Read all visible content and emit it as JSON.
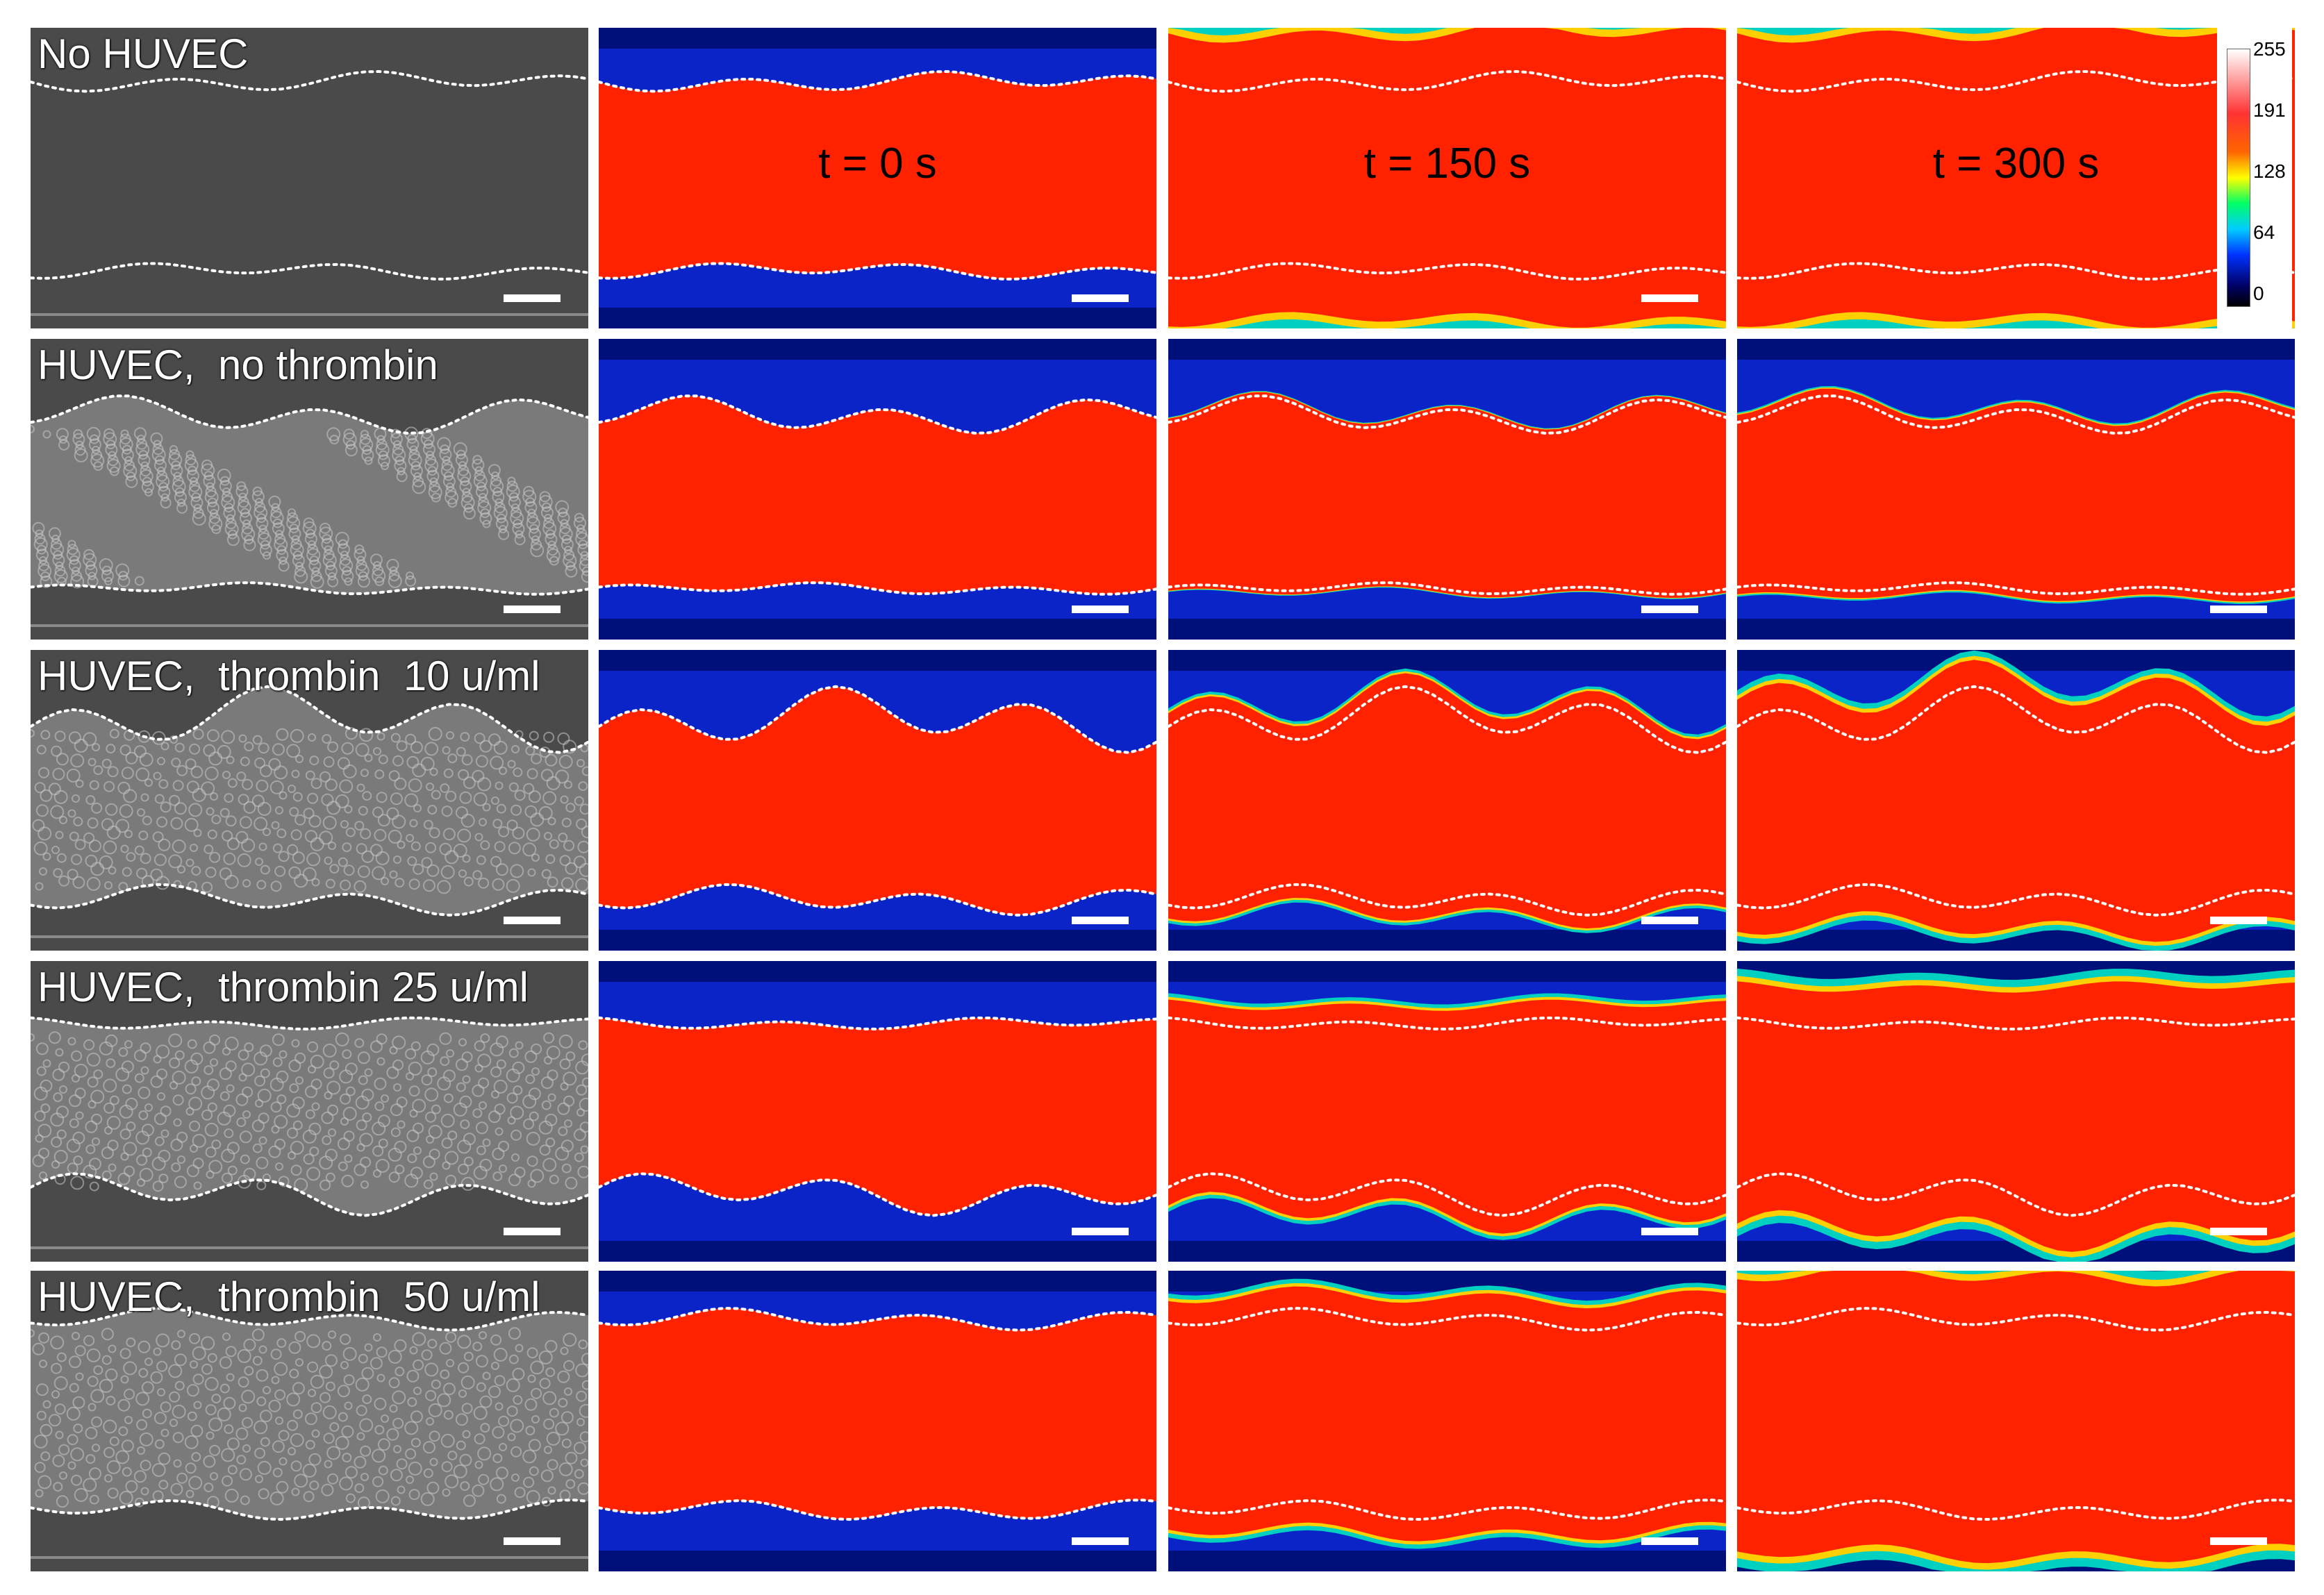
{
  "rows": [
    {
      "label": "No HUVEC"
    },
    {
      "label": "HUVEC,  no thrombin"
    },
    {
      "label": "HUVEC,  thrombin  10 u/ml"
    },
    {
      "label": "HUVEC,  thrombin 25 u/ml"
    },
    {
      "label": "HUVEC,  thrombin  50 u/ml"
    }
  ],
  "time_labels": [
    "t = 0 s",
    "t = 150 s",
    "t = 300 s"
  ],
  "colorbar": {
    "ticks": [
      "255",
      "191",
      "128",
      "64",
      "0"
    ]
  },
  "colors": {
    "red": "#ff2200",
    "blue": "#0a24c8",
    "navy": "#00107a",
    "gray": "#4a4a4a",
    "outline": "#ffffff"
  }
}
